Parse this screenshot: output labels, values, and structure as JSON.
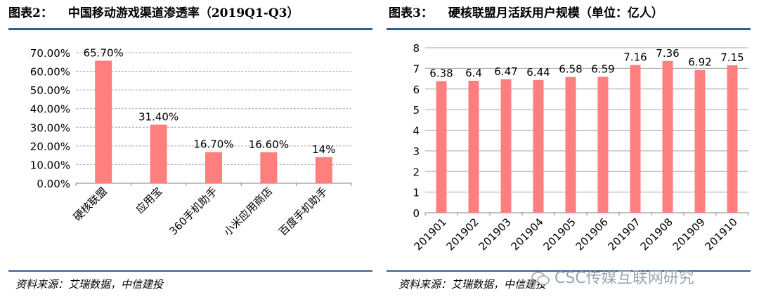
{
  "left": {
    "title_prefix": "图表2：",
    "title": "中国移动游戏渠道渗透率（2019Q1-Q3）",
    "source": "资料来源：艾瑞数据，中信建投",
    "chart_data": {
      "type": "bar",
      "categories": [
        "硬核联盟",
        "应用宝",
        "360手机助手",
        "小米应用商店",
        "百度手机助手"
      ],
      "values": [
        65.7,
        31.4,
        16.7,
        16.6,
        14
      ],
      "data_labels": [
        "65.70%",
        "31.40%",
        "16.70%",
        "16.60%",
        "14%"
      ],
      "yticks": [
        "0.00%",
        "10.00%",
        "20.00%",
        "30.00%",
        "40.00%",
        "50.00%",
        "60.00%",
        "70.00%"
      ],
      "ylim": [
        0,
        70
      ],
      "grid": true,
      "bar_color": "#ff7f7f"
    }
  },
  "right": {
    "title_prefix": "图表3：",
    "title": "硬核联盟月活跃用户规模（单位：亿人）",
    "source": "资料来源：艾瑞数据，中信建投",
    "chart_data": {
      "type": "bar",
      "categories": [
        "201901",
        "201902",
        "201903",
        "201904",
        "201905",
        "201906",
        "201907",
        "201908",
        "201909",
        "201910"
      ],
      "values": [
        6.38,
        6.4,
        6.47,
        6.44,
        6.58,
        6.59,
        7.16,
        7.36,
        6.92,
        7.15
      ],
      "data_labels": [
        "6.38",
        "6.4",
        "6.47",
        "6.44",
        "6.58",
        "6.59",
        "7.16",
        "7.36",
        "6.92",
        "7.15"
      ],
      "yticks": [
        "0",
        "1",
        "2",
        "3",
        "4",
        "5",
        "6",
        "7",
        "8"
      ],
      "ylim": [
        0,
        8
      ],
      "grid": true,
      "bar_color": "#ff7f7f"
    }
  },
  "watermark": "CSC传媒互联网研究",
  "colors": {
    "rule": "#2f5f93",
    "grid": "#a6a6a6",
    "axis": "#808080"
  }
}
